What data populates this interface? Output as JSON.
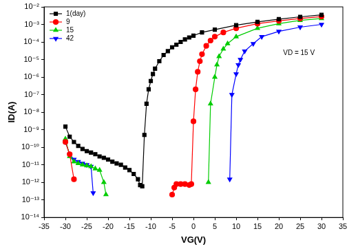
{
  "chart_data": {
    "type": "line",
    "x_label": "VG(V)",
    "y_label": "ID(A)",
    "annotation": "VD = 15 V",
    "log": "y",
    "grid": false,
    "legend": "top-left",
    "xlim": [
      -35,
      35
    ],
    "xticks": [
      -35,
      -30,
      -25,
      -20,
      -15,
      -10,
      -5,
      0,
      5,
      10,
      15,
      20,
      25,
      30,
      35
    ],
    "ylim": [
      1e-14,
      0.01
    ],
    "yticks": [
      {
        "value": 1e-14,
        "label": "10⁻¹⁴"
      },
      {
        "value": 1e-13,
        "label": "10⁻¹³"
      },
      {
        "value": 1e-12,
        "label": "10⁻¹²"
      },
      {
        "value": 1e-11,
        "label": "10⁻¹¹"
      },
      {
        "value": 1e-10,
        "label": "10⁻¹⁰"
      },
      {
        "value": 1e-09,
        "label": "10⁻⁹"
      },
      {
        "value": 1e-08,
        "label": "10⁻⁸"
      },
      {
        "value": 1e-07,
        "label": "10⁻⁷"
      },
      {
        "value": 1e-06,
        "label": "10⁻⁶"
      },
      {
        "value": 1e-05,
        "label": "10⁻⁵"
      },
      {
        "value": 0.0001,
        "label": "10⁻⁴"
      },
      {
        "value": 0.001,
        "label": "10⁻³"
      },
      {
        "value": 0.01,
        "label": "10⁻²"
      }
    ],
    "series": [
      {
        "name": "1(day)",
        "color": "#000000",
        "marker": "square",
        "line_style": "solid",
        "x": [
          -30,
          -29,
          -28,
          -27,
          -26,
          -25,
          -24,
          -23,
          -22,
          -21,
          -20,
          -19,
          -18,
          -17,
          -16,
          -15,
          -14,
          -13,
          -12.5,
          -12,
          -11.5,
          -11,
          -10.5,
          -10,
          -9.5,
          -9,
          -8,
          -7,
          -6,
          -5,
          -4,
          -3,
          -2,
          -1,
          0,
          2,
          5,
          10,
          15,
          20,
          25,
          30
        ],
        "values": [
          1.5e-09,
          4e-10,
          2e-10,
          1.2e-10,
          8e-11,
          6e-11,
          5e-11,
          4e-11,
          3e-11,
          2.5e-11,
          2e-11,
          1.5e-11,
          1.2e-11,
          1e-11,
          7e-12,
          5e-12,
          3e-12,
          1.5e-12,
          7e-13,
          6e-13,
          5e-10,
          3e-08,
          2e-07,
          6e-07,
          1.5e-06,
          3e-06,
          8e-06,
          1.8e-05,
          3e-05,
          5e-05,
          7e-05,
          0.0001,
          0.00014,
          0.00018,
          0.00023,
          0.00035,
          0.0005,
          0.0009,
          0.0014,
          0.002,
          0.0027,
          0.0035
        ]
      },
      {
        "name": "9",
        "color": "#ff0000",
        "marker": "circle",
        "line_style": "solid",
        "x": [
          -30,
          -29,
          -28,
          -16,
          -5,
          -4.5,
          -4,
          -3,
          -2,
          -1,
          -0.5,
          0,
          0.5,
          1,
          1.5,
          2,
          3,
          4,
          5,
          7,
          10,
          15,
          20,
          25,
          30
        ],
        "values": [
          2e-10,
          4e-11,
          1.5e-12,
          null,
          2e-13,
          5e-13,
          8e-13,
          8e-13,
          8e-13,
          7e-13,
          8e-13,
          3e-09,
          2e-07,
          2e-06,
          8e-06,
          2e-05,
          6e-05,
          0.00012,
          0.0002,
          0.00035,
          0.0006,
          0.0011,
          0.0016,
          0.0022,
          0.0028
        ]
      },
      {
        "name": "15",
        "color": "#00cc00",
        "marker": "triangle",
        "line_style": "solid",
        "x": [
          -30,
          -29,
          -28,
          -27,
          -26,
          -25,
          -24,
          -23,
          -22,
          -21,
          -20.5,
          -8,
          3.5,
          4,
          5,
          5.5,
          6,
          7,
          8,
          10,
          15,
          20,
          25,
          30
        ],
        "values": [
          3e-10,
          3e-11,
          1.5e-11,
          1.2e-11,
          1e-11,
          9e-12,
          8e-12,
          6e-12,
          5e-12,
          1e-12,
          2e-13,
          null,
          1e-12,
          3e-08,
          1e-06,
          5e-06,
          1.5e-05,
          4e-05,
          8e-05,
          0.0002,
          0.0006,
          0.0011,
          0.0017,
          0.0022
        ]
      },
      {
        "name": "42",
        "color": "#0000ff",
        "marker": "triangle-down",
        "line_style": "solid",
        "x": [
          -30,
          -29,
          -28,
          -27,
          -26,
          -25,
          -24,
          -23.5,
          -8,
          8.5,
          9,
          10,
          10.5,
          11,
          12,
          14,
          16,
          20,
          25,
          30
        ],
        "values": [
          2e-10,
          4e-11,
          2e-11,
          1.5e-11,
          1.2e-11,
          1e-11,
          8e-12,
          2.5e-13,
          null,
          1.5e-12,
          1e-07,
          1.5e-06,
          5e-06,
          1e-05,
          3e-05,
          8e-05,
          0.0002,
          0.0004,
          0.0007,
          0.001
        ]
      }
    ]
  }
}
